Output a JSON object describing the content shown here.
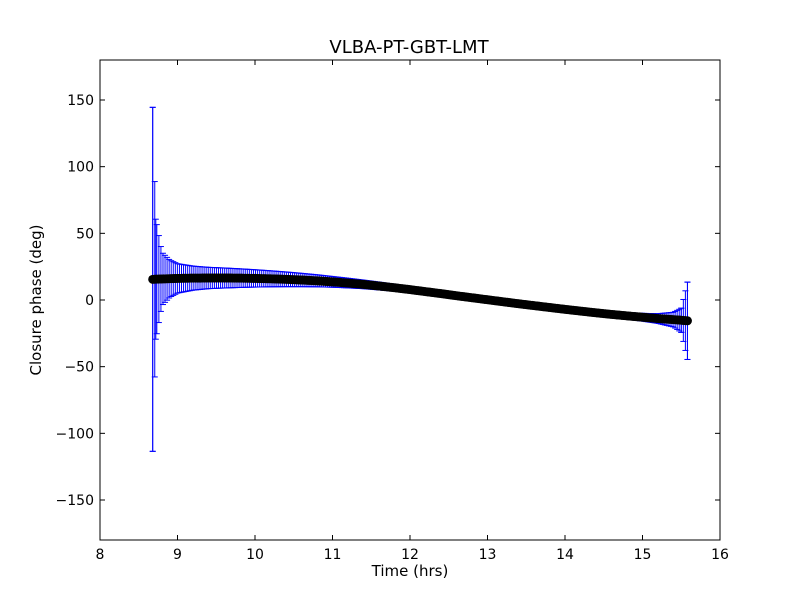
{
  "chart_data": {
    "type": "scatter",
    "title": "VLBA-PT-GBT-LMT",
    "xlabel": "Time (hrs)",
    "ylabel": "Closure phase (deg)",
    "xlim": [
      8,
      16
    ],
    "ylim": [
      -180,
      180
    ],
    "x_ticks": [
      8,
      9,
      10,
      11,
      12,
      13,
      14,
      15,
      16
    ],
    "y_ticks": [
      -150,
      -100,
      -50,
      0,
      50,
      100,
      150
    ],
    "x_tick_labels": [
      "8",
      "9",
      "10",
      "11",
      "12",
      "13",
      "14",
      "15",
      "16"
    ],
    "y_tick_labels": [
      "−150",
      "−100",
      "−50",
      "0",
      "50",
      "100",
      "150"
    ],
    "grid": false,
    "legend": "none",
    "marker_color": "#000000",
    "errorbar_color": "#0000ff",
    "series": [
      {
        "x": [
          8.68,
          8.72,
          8.8,
          8.9,
          9.0,
          9.2,
          9.4,
          9.6,
          9.8,
          10.0,
          10.2,
          10.4,
          10.6,
          10.8,
          11.0,
          11.2,
          11.4,
          11.6,
          11.8,
          12.0,
          12.2,
          12.4,
          12.6,
          12.8,
          13.0,
          13.2,
          13.4,
          13.6,
          13.8,
          14.0,
          14.2,
          14.4,
          14.6,
          14.8,
          15.0,
          15.2,
          15.4,
          15.5,
          15.58
        ],
        "y": [
          15.5,
          15.6,
          15.8,
          16.0,
          16.2,
          16.4,
          16.5,
          16.5,
          16.4,
          16.2,
          15.9,
          15.5,
          15.0,
          14.4,
          13.6,
          12.7,
          11.7,
          10.5,
          9.2,
          7.8,
          6.3,
          4.8,
          3.2,
          1.7,
          0.2,
          -1.3,
          -2.8,
          -4.2,
          -5.6,
          -7.0,
          -8.3,
          -9.6,
          -10.8,
          -11.9,
          -12.9,
          -13.9,
          -14.7,
          -15.2,
          -15.6
        ],
        "yerr": [
          129,
          45,
          20,
          14,
          11,
          9,
          8,
          7.5,
          7,
          6.5,
          6,
          5.5,
          5,
          4.5,
          4,
          3.6,
          3.2,
          2.9,
          2.6,
          2.3,
          2.1,
          1.9,
          1.8,
          1.7,
          1.6,
          1.6,
          1.6,
          1.6,
          1.7,
          1.8,
          1.9,
          2.0,
          2.2,
          2.5,
          2.9,
          3.6,
          5.5,
          9,
          29
        ]
      }
    ]
  }
}
